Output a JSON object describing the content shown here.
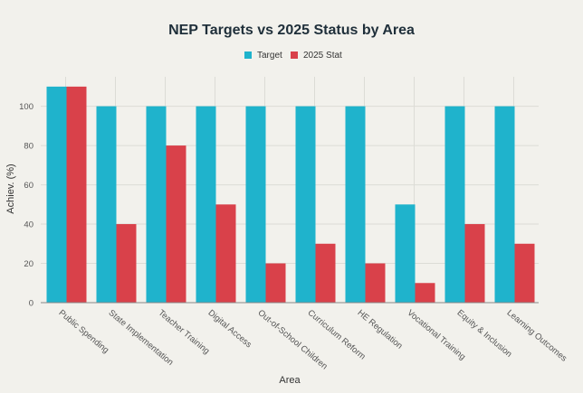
{
  "chart_data": {
    "type": "bar",
    "title": "NEP Targets vs 2025 Status by Area",
    "xlabel": "Area",
    "ylabel": "Achiev. (%)",
    "ylim": [
      0,
      115
    ],
    "yticks": [
      0,
      20,
      40,
      60,
      80,
      100
    ],
    "grid": true,
    "legend_position": "top-center",
    "categories": [
      "Public Spending",
      "State Implementation",
      "Teacher Training",
      "Digital Access",
      "Out-of-School Children",
      "Curriculum Reform",
      "HE Regulation",
      "Vocational Training",
      "Equity & Inclusion",
      "Learning Outcomes"
    ],
    "series": [
      {
        "name": "Target",
        "color": "#1fb3cc",
        "values": [
          110,
          100,
          100,
          100,
          100,
          100,
          100,
          50,
          100,
          100
        ]
      },
      {
        "name": "2025 Stat",
        "color": "#d9414a",
        "values": [
          110,
          40,
          80,
          50,
          20,
          30,
          20,
          10,
          40,
          30
        ]
      }
    ]
  }
}
